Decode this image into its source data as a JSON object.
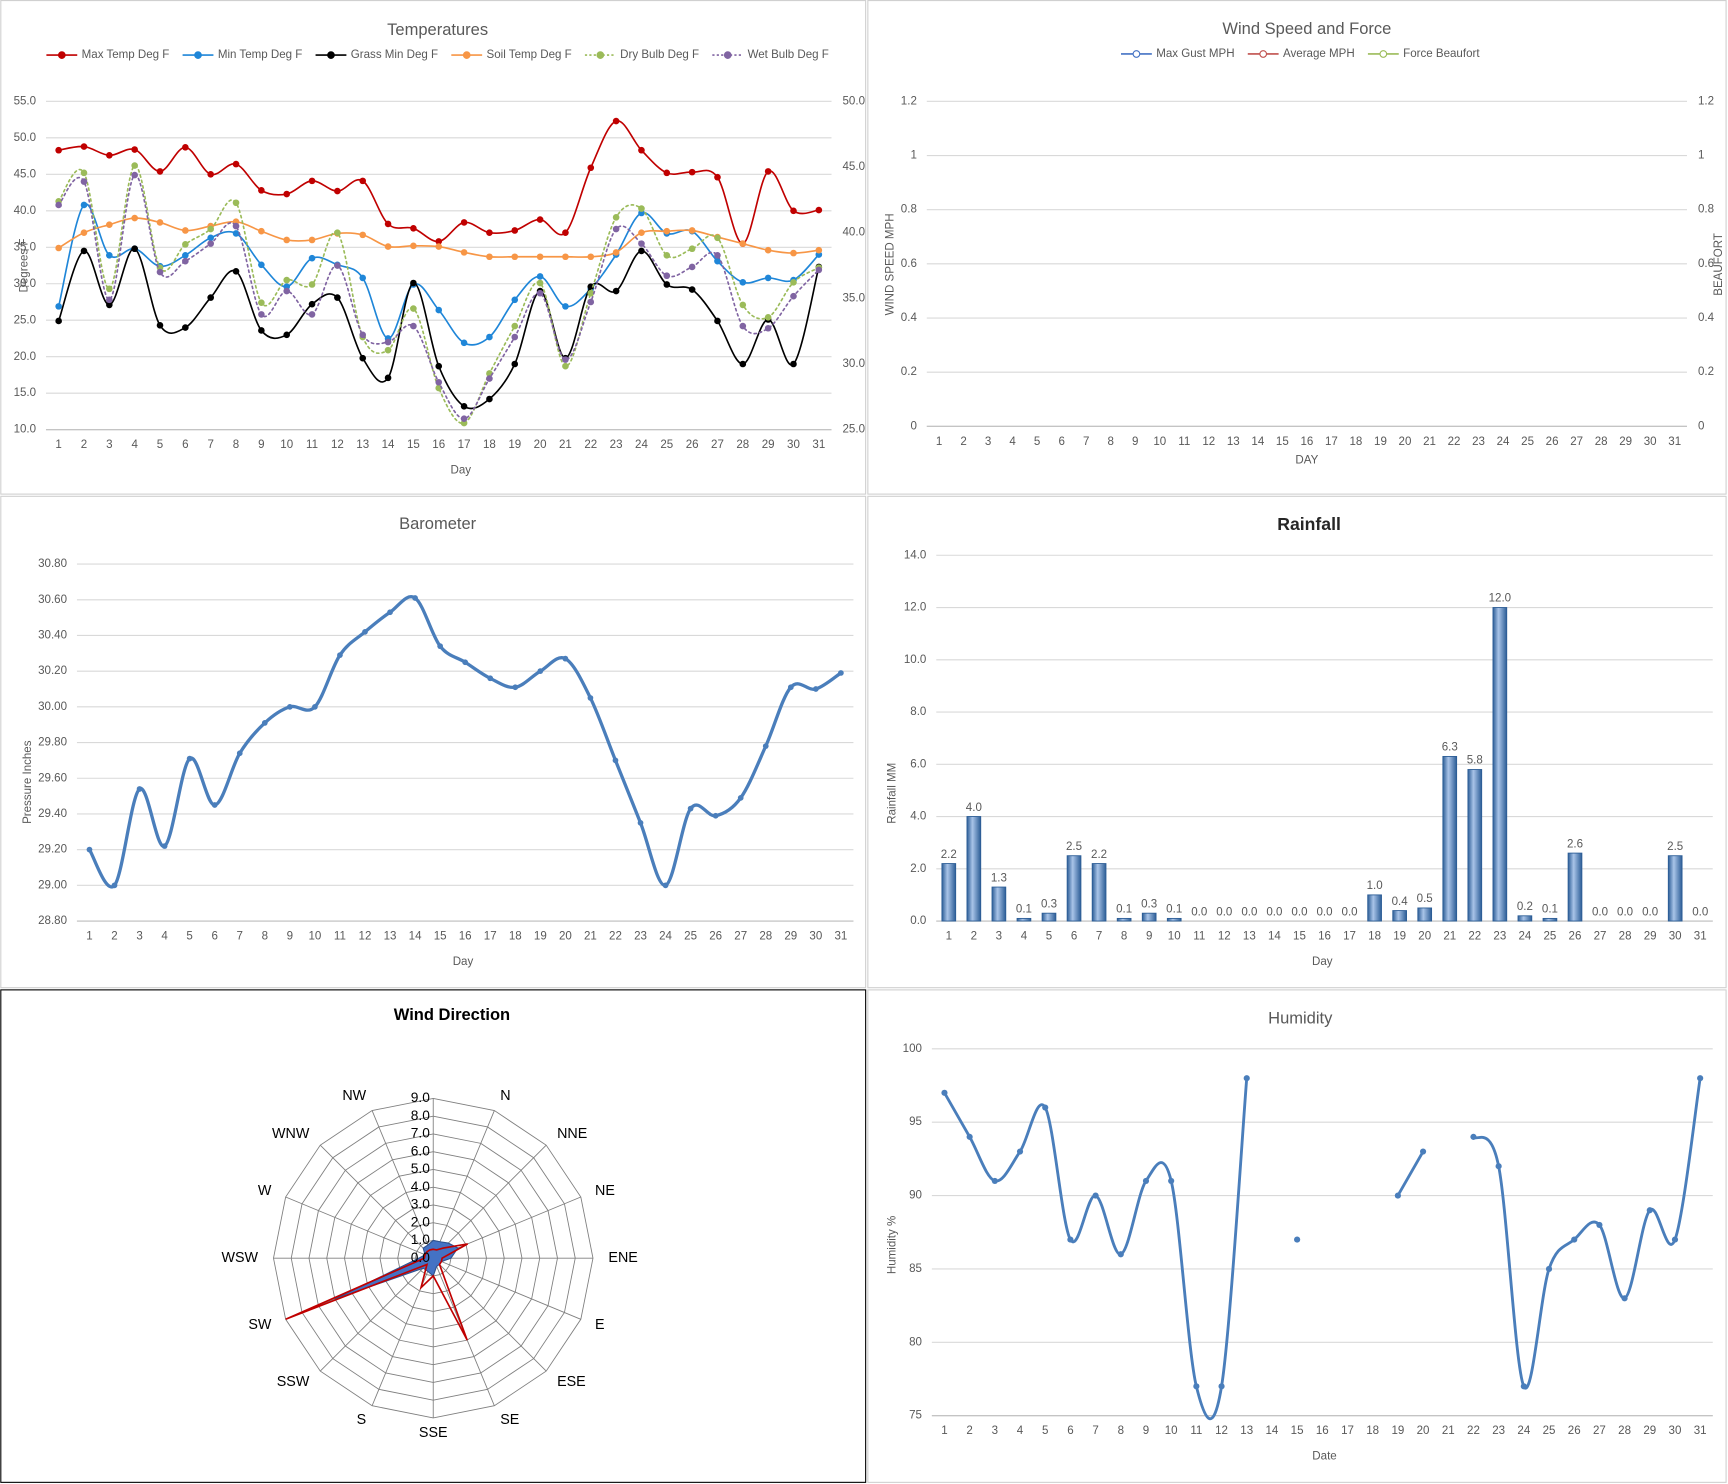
{
  "chart_data": [
    {
      "type": "line",
      "title": "Temperatures",
      "xlabel": "Day",
      "ylabel": "Degrees F",
      "categories": [
        1,
        2,
        3,
        4,
        5,
        6,
        7,
        8,
        9,
        10,
        11,
        12,
        13,
        14,
        15,
        16,
        17,
        18,
        19,
        20,
        21,
        22,
        23,
        24,
        25,
        26,
        27,
        28,
        29,
        30,
        31
      ],
      "ylim": [
        10,
        55
      ],
      "yticks": [
        {
          "value": 10,
          "label": "10.0"
        },
        {
          "value": 15,
          "label": "15.0"
        },
        {
          "value": 20,
          "label": "20.0"
        },
        {
          "value": 25,
          "label": "25.0"
        },
        {
          "value": 30,
          "label": "30.0"
        },
        {
          "value": 35,
          "label": "35.0"
        },
        {
          "value": 40,
          "label": "40.0"
        },
        {
          "value": 45,
          "label": "45.0"
        },
        {
          "value": 50,
          "label": "50.0"
        },
        {
          "value": 55,
          "label": "55.0"
        }
      ],
      "y2lim": [
        25,
        50
      ],
      "y2ticks": [
        {
          "value": 25,
          "label": "25.0"
        },
        {
          "value": 30,
          "label": "30.0"
        },
        {
          "value": 35,
          "label": "35.0"
        },
        {
          "value": 40,
          "label": "40.0"
        },
        {
          "value": 45,
          "label": "45.0"
        },
        {
          "value": 50,
          "label": "50.0"
        }
      ],
      "grid": true,
      "smooth": true,
      "markers": true,
      "legend": "top",
      "series": [
        {
          "name": "Max Temp Deg F",
          "color": "#c00000",
          "values": [
            48.3,
            48.8,
            47.6,
            48.4,
            45.4,
            48.7,
            45.0,
            46.4,
            42.8,
            42.3,
            44.1,
            42.7,
            44.1,
            38.2,
            37.6,
            35.8,
            38.4,
            37.0,
            37.3,
            38.8,
            37.0,
            45.9,
            52.3,
            48.3,
            45.2,
            45.3,
            44.6,
            35.5,
            45.4,
            40.0,
            40.1
          ]
        },
        {
          "name": "Min Temp Deg F",
          "color": "#1f86d8",
          "values": [
            26.9,
            40.8,
            33.9,
            34.8,
            32.4,
            33.9,
            36.3,
            36.9,
            32.6,
            29.6,
            33.5,
            32.6,
            30.8,
            22.5,
            29.9,
            26.4,
            21.9,
            22.7,
            27.8,
            31.0,
            26.9,
            29.3,
            34.0,
            39.7,
            36.9,
            37.2,
            33.1,
            30.2,
            30.8,
            30.5,
            34.0
          ]
        },
        {
          "name": "Grass Min Deg F",
          "color": "#000000",
          "values": [
            24.9,
            34.5,
            27.1,
            34.8,
            24.3,
            24.0,
            28.1,
            31.7,
            23.6,
            23.0,
            27.2,
            28.1,
            19.8,
            17.1,
            30.1,
            18.7,
            13.2,
            14.2,
            19.0,
            29.0,
            19.8,
            29.6,
            29.0,
            34.5,
            29.9,
            29.2,
            24.9,
            19.0,
            25.1,
            19.0,
            32.3
          ]
        },
        {
          "name": "Soil Temp Deg F",
          "color": "#f79646",
          "values": [
            34.9,
            37.0,
            38.1,
            39.0,
            38.4,
            37.3,
            37.9,
            38.5,
            37.2,
            36.0,
            36.0,
            36.9,
            36.7,
            35.1,
            35.2,
            35.1,
            34.3,
            33.7,
            33.7,
            33.7,
            33.7,
            33.7,
            34.3,
            37.0,
            37.2,
            37.3,
            36.4,
            35.5,
            34.6,
            34.2,
            34.6
          ]
        },
        {
          "name": "Dry Bulb Deg F",
          "color": "#9bbb59",
          "dash": "dotted",
          "values": [
            41.3,
            45.2,
            29.3,
            46.2,
            32.2,
            35.4,
            37.5,
            41.1,
            27.4,
            30.5,
            29.9,
            37.0,
            22.7,
            20.9,
            26.6,
            15.7,
            10.9,
            17.7,
            24.2,
            30.1,
            18.7,
            28.7,
            39.1,
            40.3,
            33.9,
            34.8,
            36.3,
            27.1,
            25.4,
            30.2,
            32.2
          ]
        },
        {
          "name": "Wet Bulb Deg F",
          "color": "#8064a2",
          "dash": "dotted",
          "values": [
            40.8,
            44.0,
            27.8,
            44.9,
            31.6,
            33.1,
            35.5,
            37.9,
            25.8,
            29.0,
            25.8,
            32.5,
            23.0,
            22.0,
            24.2,
            16.5,
            11.5,
            17.0,
            22.7,
            28.7,
            19.6,
            27.5,
            37.5,
            35.5,
            31.1,
            32.3,
            33.9,
            24.2,
            23.9,
            28.3,
            31.9
          ]
        }
      ]
    },
    {
      "type": "line",
      "title": "Wind Speed and Force",
      "xlabel": "DAY",
      "ylabel": "WIND SPEED MPH",
      "y2label": "BEAUFORT",
      "categories": [
        1,
        2,
        3,
        4,
        5,
        6,
        7,
        8,
        9,
        10,
        11,
        12,
        13,
        14,
        15,
        16,
        17,
        18,
        19,
        20,
        21,
        22,
        23,
        24,
        25,
        26,
        27,
        28,
        29,
        30,
        31
      ],
      "ylim": [
        0,
        1.2
      ],
      "yticks": [
        0,
        0.2,
        0.4,
        0.6,
        0.8,
        1,
        1.2
      ],
      "y2lim": [
        0,
        1.2
      ],
      "y2ticks": [
        0,
        0.2,
        0.4,
        0.6,
        0.8,
        1,
        1.2
      ],
      "grid": true,
      "smooth": true,
      "markers": true,
      "legend": "top",
      "series": [
        {
          "name": "Max Gust MPH",
          "color": "#4472c4",
          "values": [
            null,
            null,
            null,
            null,
            null,
            null,
            null,
            null,
            null,
            null,
            null,
            null,
            null,
            null,
            null,
            null,
            null,
            null,
            null,
            null,
            null,
            null,
            null,
            null,
            null,
            null,
            null,
            null,
            null,
            null,
            null
          ]
        },
        {
          "name": "Average MPH",
          "color": "#c0504d",
          "values": [
            null,
            null,
            null,
            null,
            null,
            null,
            null,
            null,
            null,
            null,
            null,
            null,
            null,
            null,
            null,
            null,
            null,
            null,
            null,
            null,
            null,
            null,
            null,
            null,
            null,
            null,
            null,
            null,
            null,
            null,
            null
          ]
        },
        {
          "name": "Force Beaufort",
          "color": "#9bbb59",
          "axis": "y2",
          "values": [
            null,
            null,
            null,
            null,
            null,
            null,
            null,
            null,
            null,
            null,
            null,
            null,
            null,
            null,
            null,
            null,
            null,
            null,
            null,
            null,
            null,
            null,
            null,
            null,
            null,
            null,
            null,
            null,
            null,
            null,
            null
          ]
        }
      ]
    },
    {
      "type": "line",
      "title": "Barometer",
      "xlabel": "Day",
      "ylabel": "Pressure Inches",
      "categories": [
        1,
        2,
        3,
        4,
        5,
        6,
        7,
        8,
        9,
        10,
        11,
        12,
        13,
        14,
        15,
        16,
        17,
        18,
        19,
        20,
        21,
        22,
        23,
        24,
        25,
        26,
        27,
        28,
        29,
        30,
        31
      ],
      "ylim": [
        28.8,
        30.8
      ],
      "yticks": [
        {
          "value": 28.8,
          "label": "28.80"
        },
        {
          "value": 29.0,
          "label": "29.00"
        },
        {
          "value": 29.2,
          "label": "29.20"
        },
        {
          "value": 29.4,
          "label": "29.40"
        },
        {
          "value": 29.6,
          "label": "29.60"
        },
        {
          "value": 29.8,
          "label": "29.80"
        },
        {
          "value": 30.0,
          "label": "30.00"
        },
        {
          "value": 30.2,
          "label": "30.20"
        },
        {
          "value": 30.4,
          "label": "30.40"
        },
        {
          "value": 30.6,
          "label": "30.60"
        },
        {
          "value": 30.8,
          "label": "30.80"
        }
      ],
      "grid": true,
      "smooth": true,
      "markers": true,
      "color": "#4a7ebb",
      "values": [
        29.2,
        29.0,
        29.54,
        29.22,
        29.71,
        29.45,
        29.74,
        29.91,
        30.0,
        30.0,
        30.29,
        30.42,
        30.53,
        30.61,
        30.34,
        30.25,
        30.16,
        30.11,
        30.2,
        30.27,
        30.05,
        29.7,
        29.35,
        29.0,
        29.43,
        29.39,
        29.49,
        29.78,
        30.11,
        30.1,
        30.19
      ]
    },
    {
      "type": "bar",
      "title": "Rainfall",
      "xlabel": "Day",
      "ylabel": "Rainfall MM",
      "categories": [
        1,
        2,
        3,
        4,
        5,
        6,
        7,
        8,
        9,
        10,
        11,
        12,
        13,
        14,
        15,
        16,
        17,
        18,
        19,
        20,
        21,
        22,
        23,
        24,
        25,
        26,
        27,
        28,
        29,
        30,
        31
      ],
      "ylim": [
        0,
        14
      ],
      "yticks": [
        {
          "value": 0,
          "label": "0.0"
        },
        {
          "value": 2,
          "label": "2.0"
        },
        {
          "value": 4,
          "label": "4.0"
        },
        {
          "value": 6,
          "label": "6.0"
        },
        {
          "value": 8,
          "label": "8.0"
        },
        {
          "value": 10,
          "label": "10.0"
        },
        {
          "value": 12,
          "label": "12.0"
        },
        {
          "value": 14,
          "label": "14.0"
        }
      ],
      "grid": true,
      "color": "#2c5d96",
      "values": [
        2.2,
        4.0,
        1.3,
        0.1,
        0.3,
        2.5,
        2.2,
        0.1,
        0.3,
        0.1,
        0,
        0,
        0,
        0,
        0,
        0,
        0,
        1.0,
        0.4,
        0.5,
        6.3,
        5.8,
        12.0,
        0.2,
        0.1,
        2.6,
        0,
        0,
        0,
        2.5,
        0
      ],
      "value_labels": [
        "2.2",
        "4.0",
        "1.3",
        "0.1",
        "0.3",
        "2.5",
        "2.2",
        "0.1",
        "0.3",
        "0.1",
        "0.0",
        "0.0",
        "0.0",
        "0.0",
        "0.0",
        "0.0",
        "0.0",
        "1.0",
        "0.4",
        "0.5",
        "6.3",
        "5.8",
        "12.0",
        "0.2",
        "0.1",
        "2.6",
        "0.0",
        "0.0",
        "0.0",
        "2.5",
        "0.0"
      ]
    },
    {
      "type": "radar",
      "title": "Wind Direction",
      "categories": [
        null,
        "N",
        "NNE",
        "NE",
        "ENE",
        "E",
        "ESE",
        "SE",
        "SSE",
        "S",
        "SSW",
        "SW",
        "WSW",
        "W",
        "WNW",
        "NW"
      ],
      "ylim": [
        0,
        9
      ],
      "yticks": [
        {
          "value": 0,
          "label": "0.0"
        },
        {
          "value": 1,
          "label": "1.0"
        },
        {
          "value": 2,
          "label": "2.0"
        },
        {
          "value": 3,
          "label": "3.0"
        },
        {
          "value": 4,
          "label": "4.0"
        },
        {
          "value": 5,
          "label": "5.0"
        },
        {
          "value": 6,
          "label": "6.0"
        },
        {
          "value": 7,
          "label": "7.0"
        },
        {
          "value": 8,
          "label": "8.0"
        },
        {
          "value": 9,
          "label": "9.0"
        }
      ],
      "grid": true,
      "series": [
        {
          "color": "#4472c4",
          "filled": true,
          "values": [
            1.0,
            1.0,
            1.2,
            1.5,
            1.0,
            0.5,
            0.5,
            0.5,
            1.0,
            0.8,
            0.8,
            6.0,
            0.8,
            0.5,
            0.8,
            0.8
          ]
        },
        {
          "color": "#c00000",
          "values": [
            0.5,
            0.5,
            0.8,
            2.1,
            0.5,
            0.5,
            0.5,
            5.0,
            1.0,
            1.8,
            0.5,
            9.0,
            0.5,
            0.5,
            0.5,
            0.5
          ]
        }
      ]
    },
    {
      "type": "line",
      "title": "Humidity",
      "xlabel": "Date",
      "ylabel": "Humidity %",
      "categories": [
        1,
        2,
        3,
        4,
        5,
        6,
        7,
        8,
        9,
        10,
        11,
        12,
        13,
        14,
        15,
        16,
        17,
        18,
        19,
        20,
        21,
        22,
        23,
        24,
        25,
        26,
        27,
        28,
        29,
        30,
        31
      ],
      "ylim": [
        75,
        100
      ],
      "yticks": [
        75,
        80,
        85,
        90,
        95,
        100
      ],
      "grid": true,
      "smooth": true,
      "markers": true,
      "color": "#4a7ebb",
      "values": [
        97,
        94,
        91,
        93,
        96,
        87,
        90,
        86,
        91,
        91,
        77,
        77,
        98,
        null,
        87,
        null,
        null,
        null,
        90,
        93,
        null,
        94,
        92,
        77,
        85,
        87,
        88,
        83,
        89,
        87,
        98
      ]
    }
  ]
}
